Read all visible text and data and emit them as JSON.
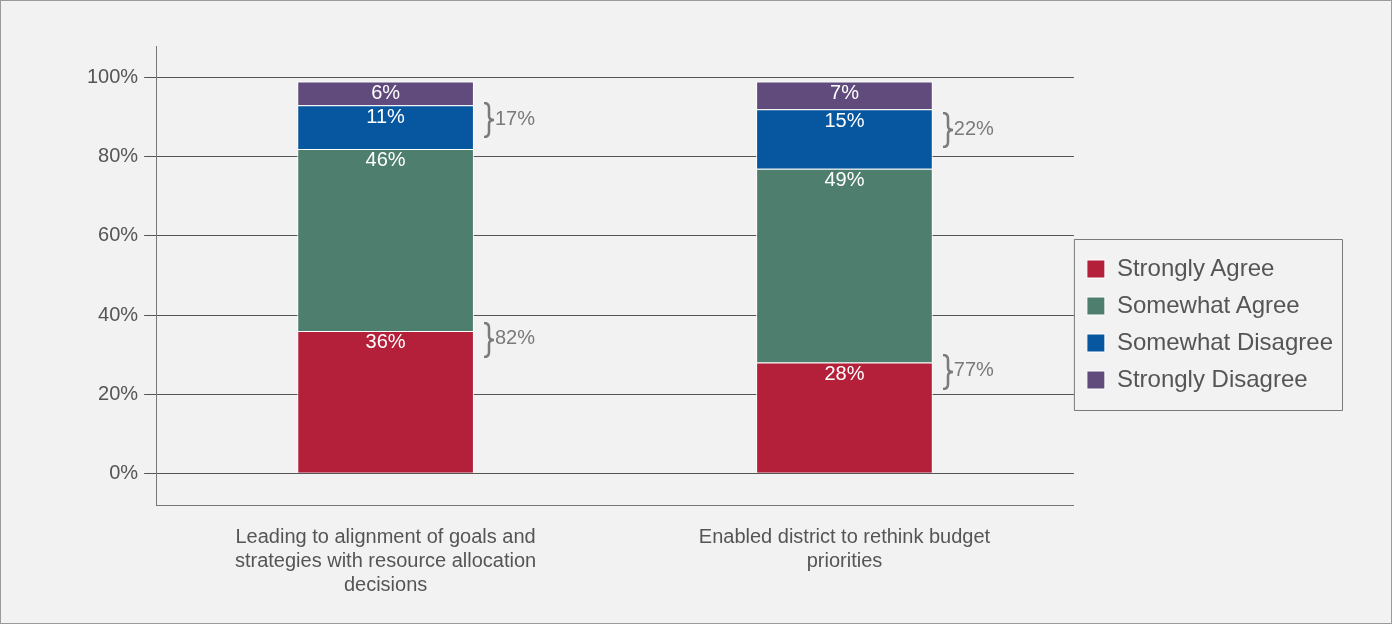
{
  "chart_data": {
    "type": "bar",
    "stacked": true,
    "categories": [
      "Leading to alignment of goals and strategies with resource allocation decisions",
      "Enabled district to rethink budget priorities"
    ],
    "series": [
      {
        "name": "Strongly Agree",
        "color": "#b41f3a",
        "values": [
          36,
          28
        ],
        "value_labels": [
          "36%",
          "28%"
        ]
      },
      {
        "name": "Somewhat Agree",
        "color": "#4e7f6e",
        "values": [
          46,
          49
        ],
        "value_labels": [
          "46%",
          "49%"
        ]
      },
      {
        "name": "Somewhat Disagree",
        "color": "#0656a0",
        "values": [
          11,
          15
        ],
        "value_labels": [
          "11%",
          "15%"
        ]
      },
      {
        "name": "Strongly Disagree",
        "color": "#614a7c",
        "values": [
          6,
          7
        ],
        "value_labels": [
          "6%",
          "7%"
        ]
      }
    ],
    "ylim": [
      -8,
      108
    ],
    "yticks": [
      {
        "value": 0,
        "label": "0%"
      },
      {
        "value": 20,
        "label": "20%"
      },
      {
        "value": 40,
        "label": "40%"
      },
      {
        "value": 60,
        "label": "60%"
      },
      {
        "value": 80,
        "label": "80%"
      },
      {
        "value": 100,
        "label": "100%"
      }
    ],
    "grid": "y",
    "legend": "right",
    "annotations": [
      "82%",
      "17%",
      "77%",
      "22%"
    ]
  }
}
